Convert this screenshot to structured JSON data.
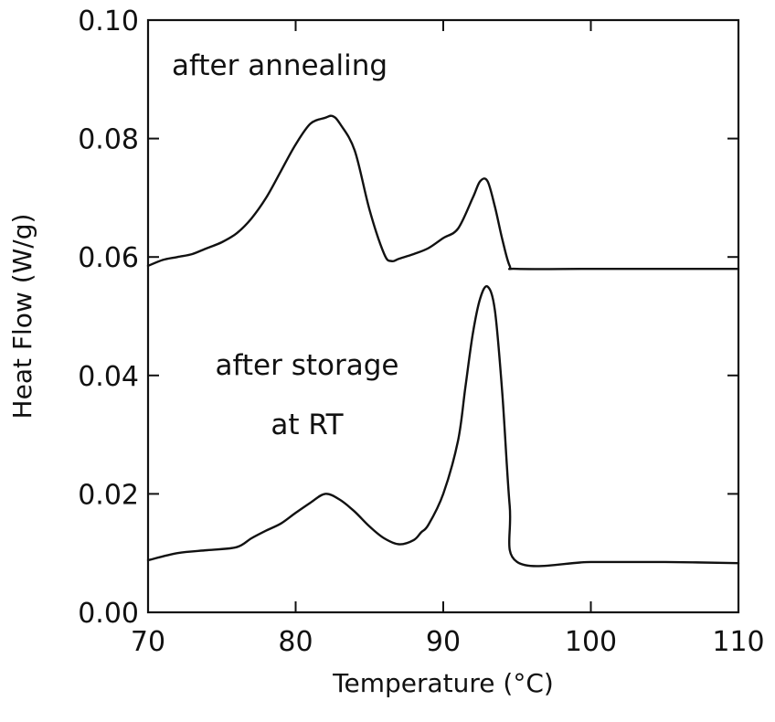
{
  "chart_data": {
    "type": "line",
    "title": "",
    "xlabel": "Temperature (°C)",
    "ylabel": "Heat Flow (W/g)",
    "xlim": [
      70,
      110
    ],
    "ylim": [
      0.0,
      0.1
    ],
    "x_ticks": [
      70,
      80,
      90,
      100,
      110
    ],
    "x_tick_labels": [
      "70",
      "80",
      "90",
      "100",
      "110"
    ],
    "y_ticks": [
      0.0,
      0.02,
      0.04,
      0.06,
      0.08,
      0.1
    ],
    "y_tick_labels": [
      "0.00",
      "0.02",
      "0.04",
      "0.06",
      "0.08",
      "0.10"
    ],
    "grid": false,
    "annotations": [
      {
        "id": "annealing",
        "lines": [
          "after annealing"
        ]
      },
      {
        "id": "storage",
        "lines": [
          "after storage",
          "at RT"
        ]
      }
    ],
    "series": [
      {
        "x": [
          70,
          71,
          72,
          73,
          74,
          75,
          76,
          77,
          78,
          79,
          80,
          81,
          82,
          82.5,
          83,
          84,
          85,
          86,
          86.5,
          87,
          88,
          89,
          90,
          91,
          92,
          92.5,
          93,
          93.5,
          94,
          94.5,
          95,
          100,
          105,
          110
        ],
        "y": [
          0.0585,
          0.0595,
          0.06,
          0.0605,
          0.0615,
          0.0625,
          0.064,
          0.0665,
          0.07,
          0.0745,
          0.079,
          0.0825,
          0.0835,
          0.0838,
          0.0825,
          0.078,
          0.068,
          0.0605,
          0.0593,
          0.0597,
          0.0605,
          0.0615,
          0.0632,
          0.0648,
          0.07,
          0.0728,
          0.0728,
          0.0685,
          0.063,
          0.0585,
          0.058,
          0.058,
          0.058,
          0.058
        ]
      },
      {
        "x": [
          70,
          72,
          74,
          76,
          77,
          78,
          79,
          80,
          81,
          82,
          83,
          84,
          85,
          86,
          87,
          88,
          88.5,
          89,
          90,
          91,
          91.5,
          92,
          92.5,
          93,
          93.5,
          94,
          94.5,
          95,
          100,
          105,
          110
        ],
        "y": [
          0.0088,
          0.01,
          0.0105,
          0.011,
          0.0125,
          0.0138,
          0.015,
          0.0168,
          0.0185,
          0.02,
          0.019,
          0.017,
          0.0145,
          0.0125,
          0.0115,
          0.0122,
          0.0135,
          0.0148,
          0.02,
          0.029,
          0.038,
          0.047,
          0.053,
          0.055,
          0.051,
          0.037,
          0.018,
          0.0085,
          0.0085,
          0.0085,
          0.0083
        ]
      }
    ]
  }
}
